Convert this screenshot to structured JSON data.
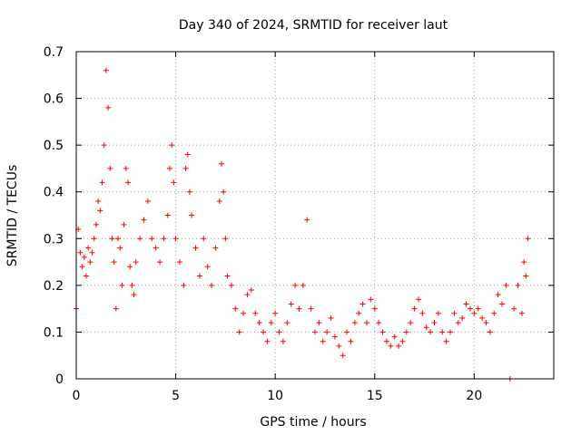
{
  "chart_data": {
    "type": "scatter",
    "title": "Day 340 of 2024, SRMTID for receiver laut",
    "xlabel": "GPS time / hours",
    "ylabel": "SRMTID / TECUs",
    "xlim": [
      0,
      24
    ],
    "ylim": [
      0,
      0.7
    ],
    "xticks": [
      0,
      5,
      10,
      15,
      20
    ],
    "xtick_labels": [
      "0",
      "5",
      "10",
      "15",
      "20"
    ],
    "yticks": [
      0,
      0.1,
      0.2,
      0.3,
      0.4,
      0.5,
      0.6,
      0.7
    ],
    "ytick_labels": [
      "0",
      "0.1",
      "0.2",
      "0.3",
      "0.4",
      "0.5",
      "0.6",
      "0.7"
    ],
    "grid": true,
    "marker": "+",
    "color": "#ff0000",
    "series": [
      {
        "name": "SRMTID",
        "points": [
          [
            0,
            0.15
          ],
          [
            0.1,
            0.32
          ],
          [
            0.2,
            0.27
          ],
          [
            0.3,
            0.24
          ],
          [
            0.4,
            0.26
          ],
          [
            0.5,
            0.22
          ],
          [
            0.6,
            0.28
          ],
          [
            0.7,
            0.25
          ],
          [
            0.8,
            0.27
          ],
          [
            0.9,
            0.3
          ],
          [
            1.0,
            0.33
          ],
          [
            1.1,
            0.38
          ],
          [
            1.2,
            0.36
          ],
          [
            1.3,
            0.42
          ],
          [
            1.4,
            0.5
          ],
          [
            1.5,
            0.66
          ],
          [
            1.6,
            0.58
          ],
          [
            1.7,
            0.45
          ],
          [
            1.8,
            0.3
          ],
          [
            1.9,
            0.25
          ],
          [
            2.0,
            0.15
          ],
          [
            2.1,
            0.3
          ],
          [
            2.2,
            0.28
          ],
          [
            2.3,
            0.2
          ],
          [
            2.4,
            0.33
          ],
          [
            2.5,
            0.45
          ],
          [
            2.6,
            0.42
          ],
          [
            2.7,
            0.24
          ],
          [
            2.8,
            0.2
          ],
          [
            2.9,
            0.18
          ],
          [
            3.0,
            0.25
          ],
          [
            3.2,
            0.3
          ],
          [
            3.4,
            0.34
          ],
          [
            3.6,
            0.38
          ],
          [
            3.8,
            0.3
          ],
          [
            4.0,
            0.28
          ],
          [
            4.2,
            0.25
          ],
          [
            4.4,
            0.3
          ],
          [
            4.6,
            0.35
          ],
          [
            4.7,
            0.45
          ],
          [
            4.8,
            0.5
          ],
          [
            4.9,
            0.42
          ],
          [
            5.0,
            0.3
          ],
          [
            5.2,
            0.25
          ],
          [
            5.4,
            0.2
          ],
          [
            5.5,
            0.45
          ],
          [
            5.6,
            0.48
          ],
          [
            5.7,
            0.4
          ],
          [
            5.8,
            0.35
          ],
          [
            6.0,
            0.28
          ],
          [
            6.2,
            0.22
          ],
          [
            6.4,
            0.3
          ],
          [
            6.6,
            0.24
          ],
          [
            6.8,
            0.2
          ],
          [
            7.0,
            0.28
          ],
          [
            7.2,
            0.38
          ],
          [
            7.3,
            0.46
          ],
          [
            7.4,
            0.4
          ],
          [
            7.5,
            0.3
          ],
          [
            7.6,
            0.22
          ],
          [
            7.8,
            0.2
          ],
          [
            8.0,
            0.15
          ],
          [
            8.2,
            0.1
          ],
          [
            8.4,
            0.14
          ],
          [
            8.6,
            0.18
          ],
          [
            8.8,
            0.19
          ],
          [
            9.0,
            0.14
          ],
          [
            9.2,
            0.12
          ],
          [
            9.4,
            0.1
          ],
          [
            9.6,
            0.08
          ],
          [
            9.8,
            0.12
          ],
          [
            10.0,
            0.14
          ],
          [
            10.2,
            0.1
          ],
          [
            10.4,
            0.08
          ],
          [
            10.6,
            0.12
          ],
          [
            10.8,
            0.16
          ],
          [
            11.0,
            0.2
          ],
          [
            11.2,
            0.15
          ],
          [
            11.4,
            0.2
          ],
          [
            11.6,
            0.34
          ],
          [
            11.8,
            0.15
          ],
          [
            12.0,
            0.1
          ],
          [
            12.2,
            0.12
          ],
          [
            12.4,
            0.08
          ],
          [
            12.6,
            0.1
          ],
          [
            12.8,
            0.13
          ],
          [
            13.0,
            0.09
          ],
          [
            13.2,
            0.07
          ],
          [
            13.4,
            0.05
          ],
          [
            13.6,
            0.1
          ],
          [
            13.8,
            0.08
          ],
          [
            14.0,
            0.12
          ],
          [
            14.2,
            0.14
          ],
          [
            14.4,
            0.16
          ],
          [
            14.6,
            0.12
          ],
          [
            14.8,
            0.17
          ],
          [
            15.0,
            0.15
          ],
          [
            15.2,
            0.12
          ],
          [
            15.4,
            0.1
          ],
          [
            15.6,
            0.08
          ],
          [
            15.8,
            0.07
          ],
          [
            16.0,
            0.09
          ],
          [
            16.2,
            0.07
          ],
          [
            16.4,
            0.08
          ],
          [
            16.6,
            0.1
          ],
          [
            16.8,
            0.12
          ],
          [
            17.0,
            0.15
          ],
          [
            17.2,
            0.17
          ],
          [
            17.4,
            0.14
          ],
          [
            17.6,
            0.11
          ],
          [
            17.8,
            0.1
          ],
          [
            18.0,
            0.12
          ],
          [
            18.2,
            0.14
          ],
          [
            18.4,
            0.1
          ],
          [
            18.6,
            0.08
          ],
          [
            18.8,
            0.1
          ],
          [
            19.0,
            0.14
          ],
          [
            19.2,
            0.12
          ],
          [
            19.4,
            0.13
          ],
          [
            19.6,
            0.16
          ],
          [
            19.8,
            0.15
          ],
          [
            20.0,
            0.14
          ],
          [
            20.2,
            0.15
          ],
          [
            20.4,
            0.13
          ],
          [
            20.6,
            0.12
          ],
          [
            20.8,
            0.1
          ],
          [
            21.0,
            0.14
          ],
          [
            21.2,
            0.18
          ],
          [
            21.4,
            0.16
          ],
          [
            21.6,
            0.2
          ],
          [
            21.8,
            0.0
          ],
          [
            22.0,
            0.15
          ],
          [
            22.2,
            0.2
          ],
          [
            22.4,
            0.14
          ],
          [
            22.5,
            0.25
          ],
          [
            22.6,
            0.22
          ],
          [
            22.7,
            0.3
          ]
        ]
      }
    ]
  }
}
